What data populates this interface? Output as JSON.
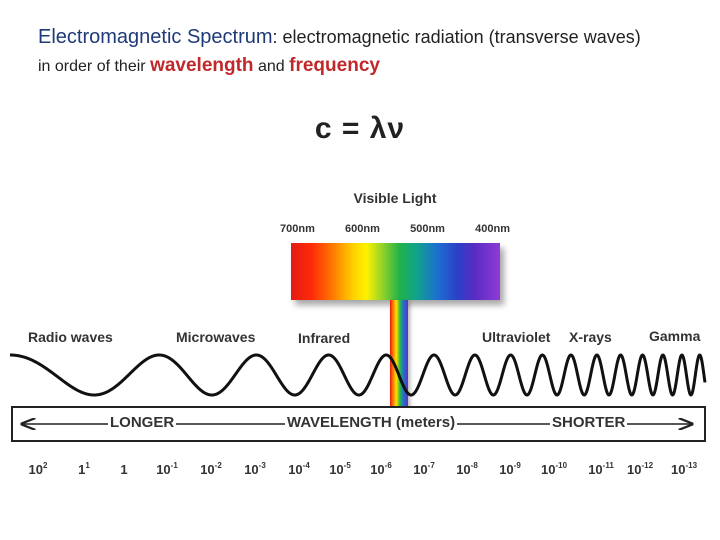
{
  "title": {
    "term1": "Electromagnetic Spectrum",
    "rest1": ":  electromagnetic radiation (transverse waves)",
    "pre2": "in order of their ",
    "term2": "wavelength",
    "mid2": " and ",
    "term3": "frequency"
  },
  "formula": "c = λν",
  "visible_light": {
    "title": "Visible Light",
    "wavelengths": [
      "700nm",
      "600nm",
      "500nm",
      "400nm"
    ]
  },
  "bands": {
    "radio": "Radio waves",
    "microwaves": "Microwaves",
    "infrared": "Infrared",
    "ultraviolet": "Ultraviolet",
    "xrays": "X-rays",
    "gamma": "Gamma"
  },
  "scale": {
    "longer": "LONGER",
    "wavelength": "WAVELENGTH (meters)",
    "shorter": "SHORTER"
  },
  "ticks": [
    {
      "base": "10",
      "exp": "2"
    },
    {
      "base": "1",
      "exp": "1"
    },
    {
      "base": "1",
      "exp": ""
    },
    {
      "base": "10",
      "exp": "-1"
    },
    {
      "base": "10",
      "exp": "-2"
    },
    {
      "base": "10",
      "exp": "-3"
    },
    {
      "base": "10",
      "exp": "-4"
    },
    {
      "base": "10",
      "exp": "-5"
    },
    {
      "base": "10",
      "exp": "-6"
    },
    {
      "base": "10",
      "exp": "-7"
    },
    {
      "base": "10",
      "exp": "-8"
    },
    {
      "base": "10",
      "exp": "-9"
    },
    {
      "base": "10",
      "exp": "-10"
    },
    {
      "base": "10",
      "exp": "-11"
    },
    {
      "base": "10",
      "exp": "-12"
    },
    {
      "base": "10",
      "exp": "-13"
    }
  ],
  "colors": {
    "title_blue": "#1f3a78",
    "title_red": "#c0282b"
  }
}
